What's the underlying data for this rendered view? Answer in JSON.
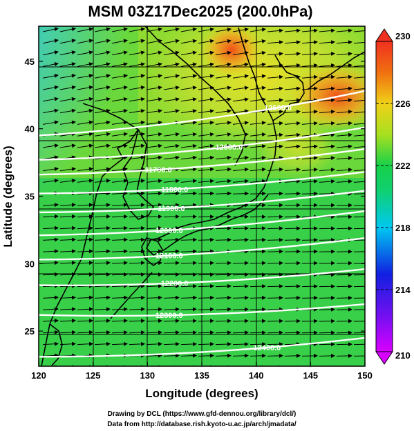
{
  "title": "MSM 03Z17Dec2025 (200.0hPa)",
  "xlabel": "Longitude (degrees)",
  "ylabel": "Latitude  (degrees)",
  "xlim": [
    120,
    150
  ],
  "ylim": [
    22.4,
    47.6
  ],
  "xticks": [
    "120",
    "125",
    "130",
    "135",
    "140",
    "145",
    "150"
  ],
  "yticks": [
    "25",
    "30",
    "35",
    "40",
    "45"
  ],
  "colorbar": {
    "min": 210,
    "max": 230,
    "labels": [
      "230",
      "226",
      "222",
      "218",
      "214",
      "210"
    ],
    "colors": [
      "#d800ff",
      "#1020e0",
      "#00c8f0",
      "#18d048",
      "#a8e020",
      "#f0d018",
      "#f07010",
      "#f03020"
    ]
  },
  "contours": [
    {
      "label": "12500.0",
      "lat_left": 39.5,
      "lat_right": 42.8,
      "label_lon": 142.0
    },
    {
      "label": "12600.0",
      "lat_left": 37.7,
      "lat_right": 40.1,
      "label_lon": 137.5
    },
    {
      "label": "11700.0",
      "lat_left": 36.6,
      "lat_right": 38.5,
      "label_lon": 131.0
    },
    {
      "label": "11800.0",
      "lat_left": 35.2,
      "lat_right": 36.8,
      "label_lon": 132.5
    },
    {
      "label": "11900.0",
      "lat_left": 33.8,
      "lat_right": 35.4,
      "label_lon": 132.2
    },
    {
      "label": "12000.0",
      "lat_left": 32.1,
      "lat_right": 33.9,
      "label_lon": 132.0
    },
    {
      "label": "12100.0",
      "lat_left": 30.3,
      "lat_right": 31.9,
      "label_lon": 132.0
    },
    {
      "label": "12200.0",
      "lat_left": 28.4,
      "lat_right": 29.6,
      "label_lon": 132.5
    },
    {
      "label": "12300.0",
      "lat_left": 26.2,
      "lat_right": 27.0,
      "label_lon": 132.0
    },
    {
      "label": "12400.0",
      "lat_left": 23.1,
      "lat_right": 24.5,
      "label_lon": 141.0
    }
  ],
  "credits": {
    "line1": "Drawing by DCL (https://www.gfd-dennou.org/library/dcl/)",
    "line2": "Data from http://database.rish.kyoto-u.ac.jp/arch/jmadata/"
  }
}
